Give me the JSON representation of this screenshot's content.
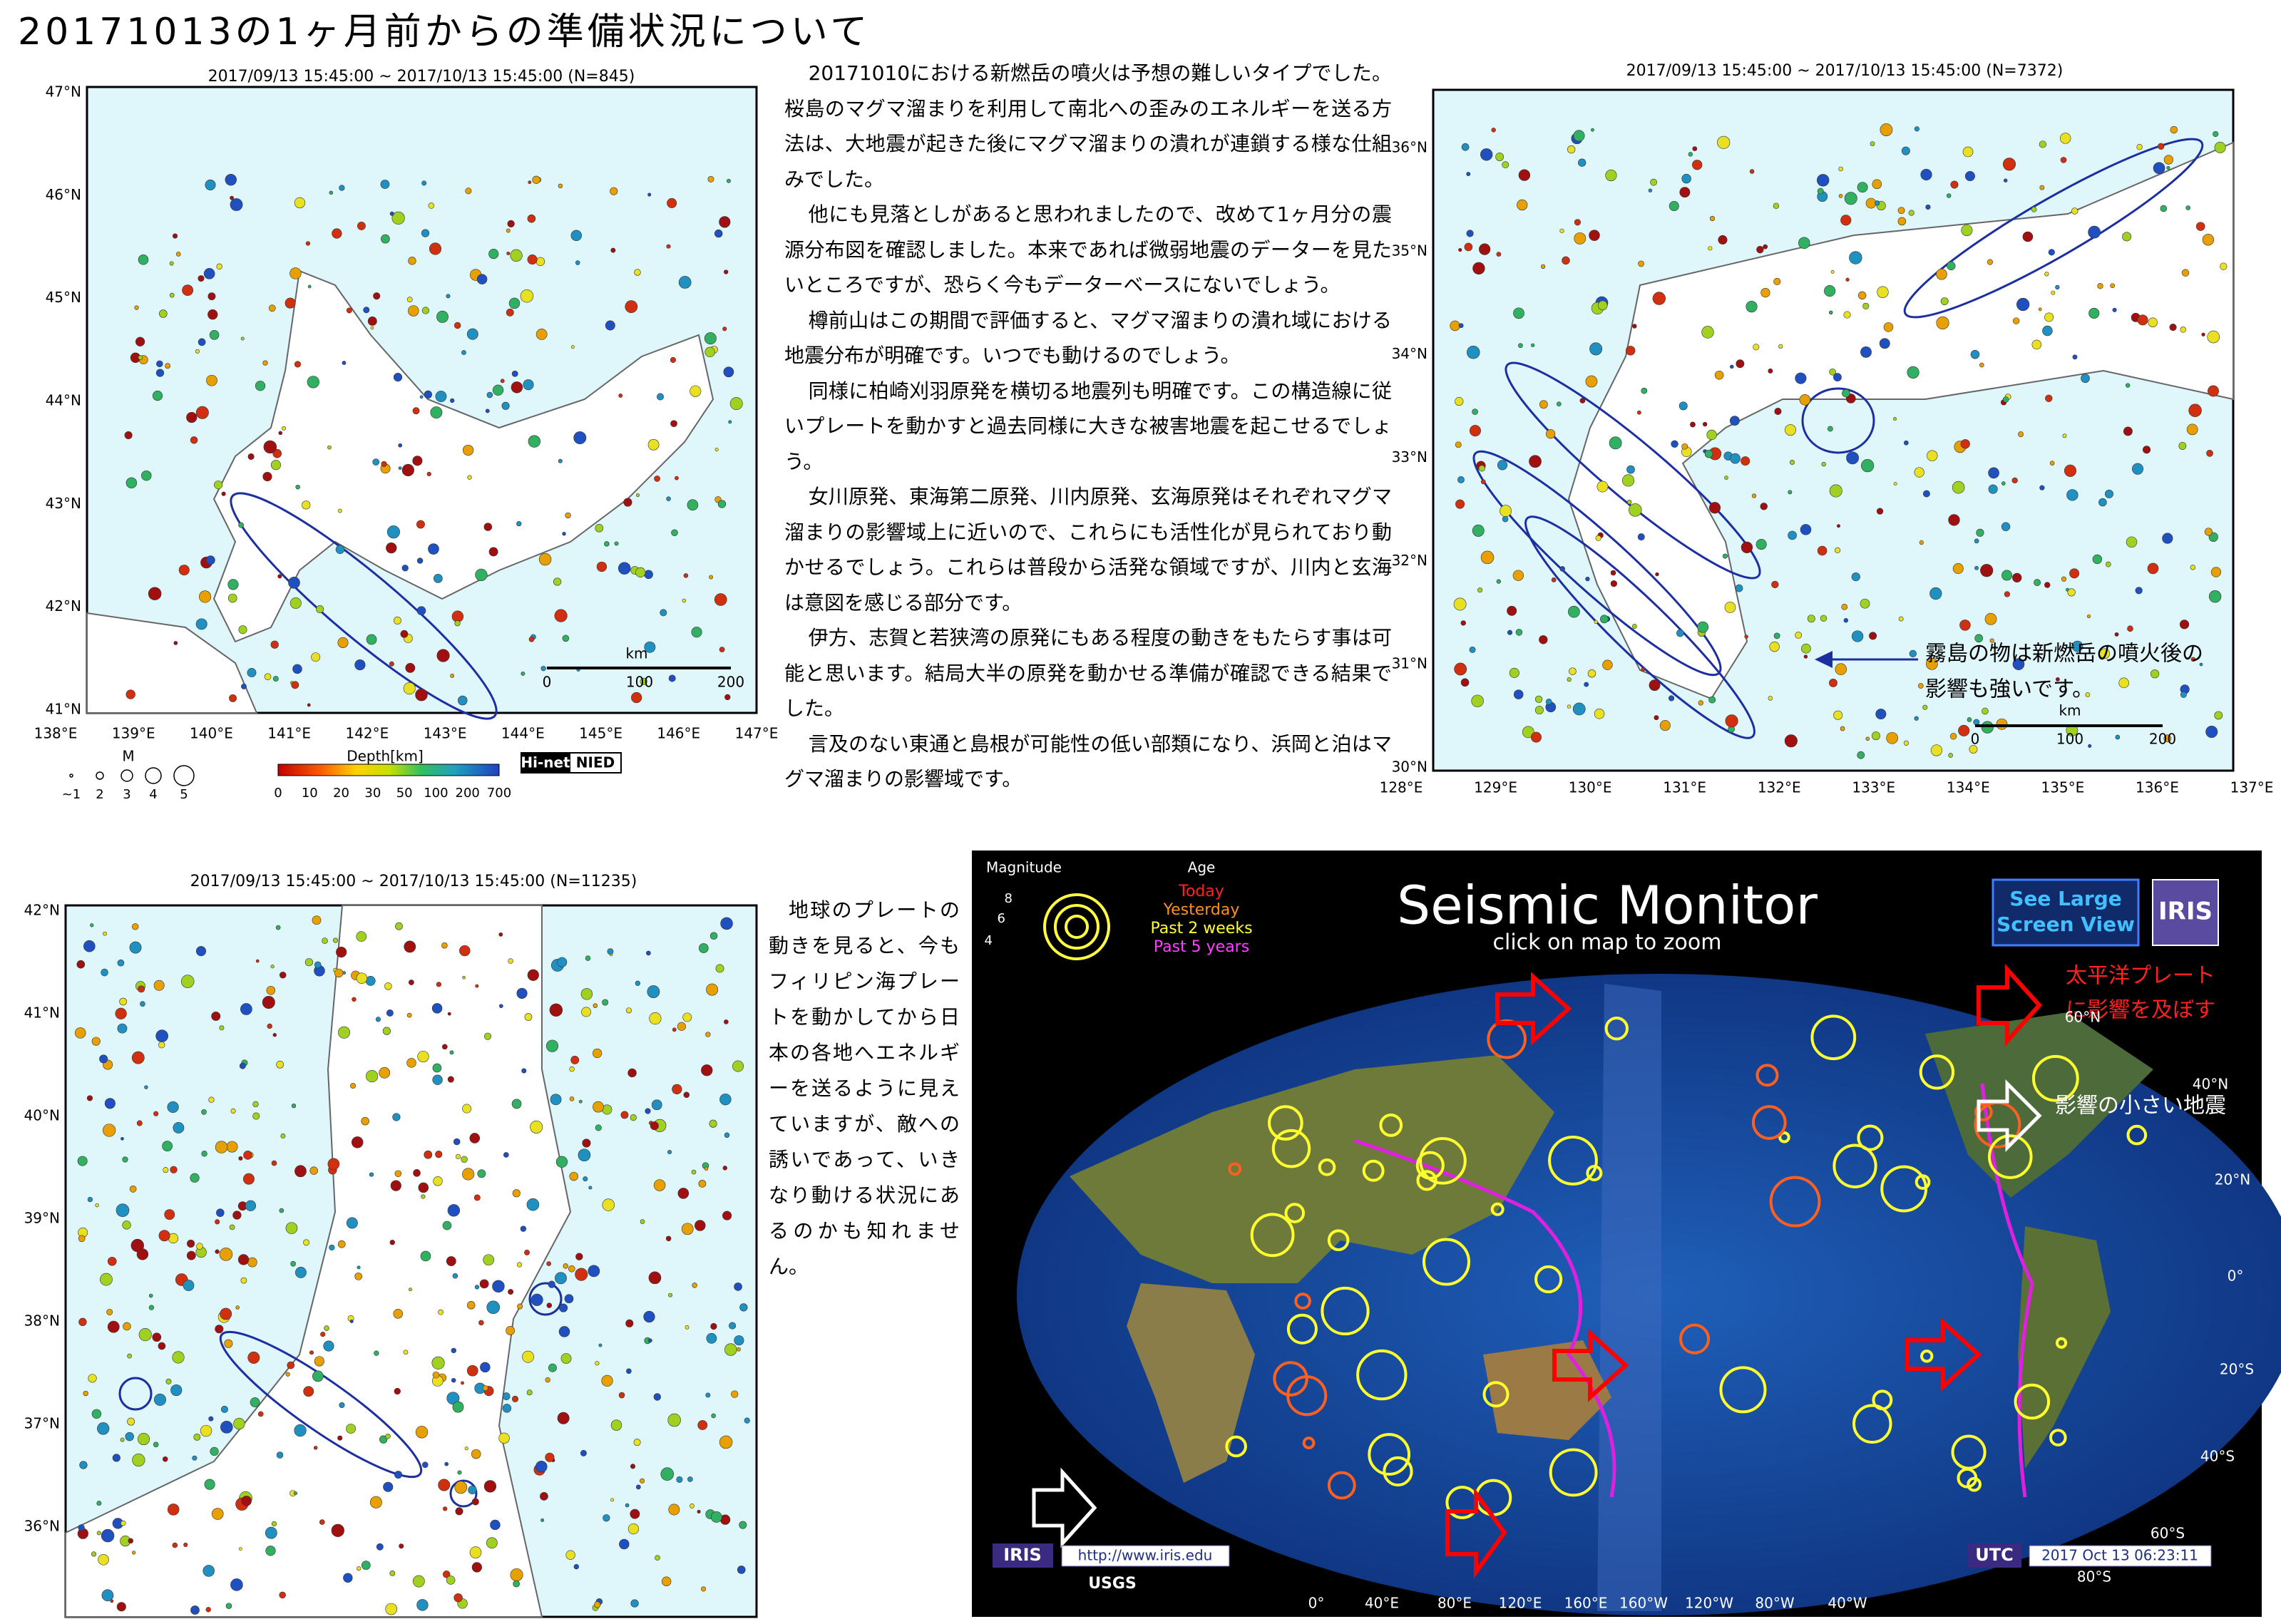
{
  "header": {
    "title": "20171013の1ヶ月前からの準備状況について"
  },
  "maps": [
    {
      "header": "2017/09/13 15:45:00 ~ 2017/10/13 15:45:00 (N=845)",
      "lat_labels": [
        "47°N",
        "46°N",
        "45°N",
        "44°N",
        "43°N",
        "42°N",
        "41°N"
      ],
      "lon_labels": [
        "138°E",
        "139°E",
        "140°E",
        "141°E",
        "142°E",
        "143°E",
        "144°E",
        "145°E",
        "146°E",
        "147°E"
      ],
      "scale_unit": "km",
      "scale_labels": [
        "0",
        "100",
        "200"
      ],
      "magnitude_title": "M",
      "magnitude_labels": [
        "~1",
        "2",
        "3",
        "4",
        "5"
      ],
      "depth_title": "Depth[km]",
      "depth_labels": [
        "0",
        "10",
        "20",
        "30",
        "50",
        "100",
        "200",
        "700"
      ],
      "logo": [
        "Hi-net",
        "NIED"
      ]
    },
    {
      "header": "2017/09/13 15:45:00 ~ 2017/10/13 15:45:00 (N=7372)",
      "lat_labels": [
        "36°N",
        "35°N",
        "34°N",
        "33°N",
        "32°N",
        "31°N",
        "30°N"
      ],
      "lon_labels": [
        "128°E",
        "129°E",
        "130°E",
        "131°E",
        "132°E",
        "133°E",
        "134°E",
        "135°E",
        "136°E",
        "137°E"
      ],
      "scale_unit": "km",
      "scale_labels": [
        "0",
        "100",
        "200"
      ],
      "annotation": [
        "霧島の物は新燃岳の噴火後の",
        "影響も強いです。"
      ]
    },
    {
      "header": "2017/09/13 15:45:00 ~ 2017/10/13 15:45:00 (N=11235)",
      "lat_labels": [
        "42°N",
        "41°N",
        "40°N",
        "39°N",
        "38°N",
        "37°N",
        "36°N"
      ]
    }
  ],
  "article": {
    "paragraphs": [
      "20171010における新燃岳の噴火は予想の難しいタイプでした。桜島のマグマ溜まりを利用して南北への歪みのエネルギーを送る方法は、大地震が起きた後にマグマ溜まりの潰れが連鎖する様な仕組みでした。",
      "他にも見落としがあると思われましたので、改めて1ヶ月分の震源分布図を確認しました。本来であれば微弱地震のデーターを見たいところですが、恐らく今もデーターベースにないでしょう。",
      "樽前山はこの期間で評価すると、マグマ溜まりの潰れ域における地震分布が明確です。いつでも動けるのでしょう。",
      "同様に柏崎刈羽原発を横切る地震列も明確です。この構造線に従いプレートを動かすと過去同様に大きな被害地震を起こせるでしょう。",
      "女川原発、東海第二原発、川内原発、玄海原発はそれぞれマグマ溜まりの影響域上に近いので、これらにも活性化が見られており動かせるでしょう。これらは普段から活発な領域ですが、川内と玄海は意図を感じる部分です。",
      "伊方、志賀と若狭湾の原発にもある程度の動きをもたらす事は可能と思います。結局大半の原発を動かせる準備が確認できる結果でした。",
      "言及のない東通と島根が可能性の低い部類になり、浜岡と泊はマグマ溜まりの影響域です。"
    ]
  },
  "sidebar": {
    "text": "地球のプレートの動きを見ると、今もフィリピン海プレートを動かしてから日本の各地へエネルギーを送るように見えていますが、敵への誘いであって、いきなり動ける状況にあるのかも知れません。"
  },
  "monitor": {
    "magnitude_title": "Magnitude",
    "magnitude_labels": [
      "8",
      "6",
      "4"
    ],
    "age_title": "Age",
    "age_labels": [
      "Today",
      "Yesterday",
      "Past 2 weeks",
      "Past 5 years"
    ],
    "title": "Seismic Monitor",
    "subtitle": "click on map to zoom",
    "button": [
      "See Large",
      "Screen View"
    ],
    "logo": "IRIS",
    "annotation_pacific": [
      "太平洋プレート",
      "に影響を及ぼす"
    ],
    "annotation_small": "影響の小さい地震",
    "lat_labels": [
      "60°N",
      "40°N",
      "20°N",
      "0°",
      "20°S",
      "40°S",
      "60°S",
      "80°S"
    ],
    "lon_labels": [
      "0°",
      "40°E",
      "80°E",
      "120°E",
      "160°E",
      "160°W",
      "120°W",
      "80°W",
      "40°W"
    ],
    "footer_logo": "IRIS",
    "url": "http://www.iris.edu",
    "usgs": "USGS",
    "utc_label": "UTC",
    "timestamp": "2017 Oct 13 06:23:11"
  }
}
